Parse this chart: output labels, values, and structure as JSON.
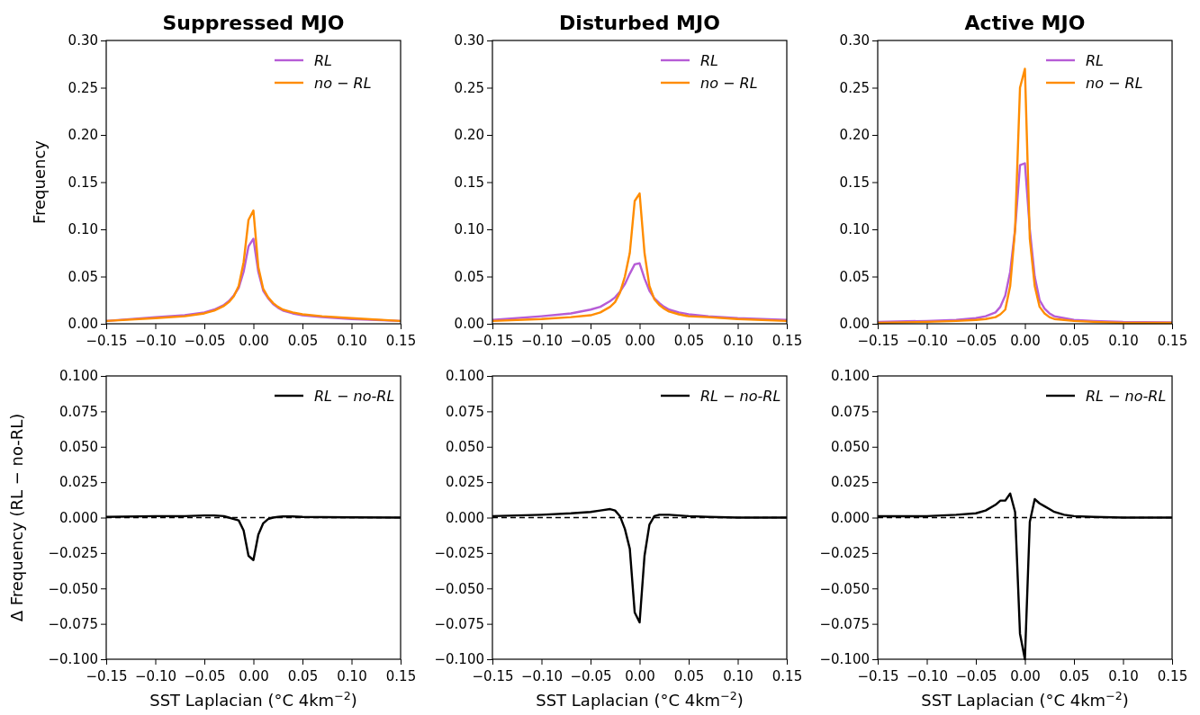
{
  "chart_data": [
    {
      "type": "line",
      "title": "Suppressed MJO",
      "ylabel": "Frequency",
      "legend": "top right",
      "xlim": [
        -0.15,
        0.15
      ],
      "ylim": [
        0,
        0.3
      ],
      "xticks": [
        {
          "value": -0.15,
          "label": "−0.15"
        },
        {
          "value": -0.1,
          "label": "−0.10"
        },
        {
          "value": -0.05,
          "label": "−0.05"
        },
        {
          "value": 0,
          "label": "0.00"
        },
        {
          "value": 0.05,
          "label": "0.05"
        },
        {
          "value": 0.1,
          "label": "0.10"
        },
        {
          "value": 0.15,
          "label": "0.15"
        }
      ],
      "yticks": [
        {
          "value": 0,
          "label": "0.00"
        },
        {
          "value": 0.05,
          "label": "0.05"
        },
        {
          "value": 0.1,
          "label": "0.10"
        },
        {
          "value": 0.15,
          "label": "0.15"
        },
        {
          "value": 0.2,
          "label": "0.20"
        },
        {
          "value": 0.25,
          "label": "0.25"
        },
        {
          "value": 0.3,
          "label": "0.30"
        }
      ],
      "x": [
        -0.15,
        -0.1,
        -0.07,
        -0.05,
        -0.04,
        -0.03,
        -0.025,
        -0.02,
        -0.015,
        -0.01,
        -0.005,
        0,
        0.005,
        0.01,
        0.015,
        0.02,
        0.025,
        0.03,
        0.04,
        0.05,
        0.07,
        0.1,
        0.15
      ],
      "series": [
        {
          "name": "RL",
          "color": "#b65cd6",
          "values": [
            0.003,
            0.007,
            0.009,
            0.012,
            0.015,
            0.02,
            0.024,
            0.03,
            0.038,
            0.055,
            0.082,
            0.09,
            0.055,
            0.035,
            0.027,
            0.021,
            0.017,
            0.014,
            0.011,
            0.009,
            0.007,
            0.005,
            0.003
          ]
        },
        {
          "name": "no − RL",
          "color": "#ff8c00",
          "values": [
            0.003,
            0.006,
            0.008,
            0.011,
            0.014,
            0.019,
            0.023,
            0.029,
            0.04,
            0.065,
            0.11,
            0.12,
            0.06,
            0.037,
            0.028,
            0.022,
            0.018,
            0.015,
            0.012,
            0.01,
            0.008,
            0.006,
            0.003
          ]
        }
      ]
    },
    {
      "type": "line",
      "title": "Disturbed MJO",
      "legend": "top right",
      "xlim": [
        -0.15,
        0.15
      ],
      "ylim": [
        0,
        0.3
      ],
      "xticks": [
        {
          "value": -0.15,
          "label": "−0.15"
        },
        {
          "value": -0.1,
          "label": "−0.10"
        },
        {
          "value": -0.05,
          "label": "−0.05"
        },
        {
          "value": 0,
          "label": "0.00"
        },
        {
          "value": 0.05,
          "label": "0.05"
        },
        {
          "value": 0.1,
          "label": "0.10"
        },
        {
          "value": 0.15,
          "label": "0.15"
        }
      ],
      "yticks": [
        {
          "value": 0,
          "label": "0.00"
        },
        {
          "value": 0.05,
          "label": "0.05"
        },
        {
          "value": 0.1,
          "label": "0.10"
        },
        {
          "value": 0.15,
          "label": "0.15"
        },
        {
          "value": 0.2,
          "label": "0.20"
        },
        {
          "value": 0.25,
          "label": "0.25"
        },
        {
          "value": 0.3,
          "label": "0.30"
        }
      ],
      "x": [
        -0.15,
        -0.1,
        -0.07,
        -0.05,
        -0.04,
        -0.03,
        -0.025,
        -0.02,
        -0.015,
        -0.01,
        -0.005,
        0,
        0.005,
        0.01,
        0.015,
        0.02,
        0.025,
        0.03,
        0.04,
        0.05,
        0.07,
        0.1,
        0.15
      ],
      "series": [
        {
          "name": "RL",
          "color": "#b65cd6",
          "values": [
            0.004,
            0.008,
            0.011,
            0.015,
            0.018,
            0.024,
            0.028,
            0.034,
            0.042,
            0.053,
            0.063,
            0.064,
            0.048,
            0.035,
            0.027,
            0.022,
            0.018,
            0.015,
            0.012,
            0.01,
            0.008,
            0.006,
            0.004
          ]
        },
        {
          "name": "no − RL",
          "color": "#ff8c00",
          "values": [
            0.003,
            0.005,
            0.007,
            0.009,
            0.012,
            0.018,
            0.023,
            0.033,
            0.05,
            0.075,
            0.13,
            0.138,
            0.075,
            0.04,
            0.026,
            0.02,
            0.016,
            0.013,
            0.01,
            0.008,
            0.007,
            0.005,
            0.003
          ]
        }
      ]
    },
    {
      "type": "line",
      "title": "Active MJO",
      "legend": "top right",
      "xlim": [
        -0.15,
        0.15
      ],
      "ylim": [
        0,
        0.3
      ],
      "xticks": [
        {
          "value": -0.15,
          "label": "−0.15"
        },
        {
          "value": -0.1,
          "label": "−0.10"
        },
        {
          "value": -0.05,
          "label": "−0.05"
        },
        {
          "value": 0,
          "label": "0.00"
        },
        {
          "value": 0.05,
          "label": "0.05"
        },
        {
          "value": 0.1,
          "label": "0.10"
        },
        {
          "value": 0.15,
          "label": "0.15"
        }
      ],
      "yticks": [
        {
          "value": 0,
          "label": "0.00"
        },
        {
          "value": 0.05,
          "label": "0.05"
        },
        {
          "value": 0.1,
          "label": "0.10"
        },
        {
          "value": 0.15,
          "label": "0.15"
        },
        {
          "value": 0.2,
          "label": "0.20"
        },
        {
          "value": 0.25,
          "label": "0.25"
        },
        {
          "value": 0.3,
          "label": "0.30"
        }
      ],
      "x": [
        -0.15,
        -0.1,
        -0.07,
        -0.05,
        -0.04,
        -0.03,
        -0.025,
        -0.02,
        -0.015,
        -0.01,
        -0.005,
        0,
        0.005,
        0.01,
        0.015,
        0.02,
        0.025,
        0.03,
        0.04,
        0.05,
        0.07,
        0.1,
        0.15
      ],
      "series": [
        {
          "name": "RL",
          "color": "#b65cd6",
          "values": [
            0.002,
            0.003,
            0.004,
            0.006,
            0.008,
            0.012,
            0.018,
            0.03,
            0.055,
            0.1,
            0.168,
            0.17,
            0.1,
            0.05,
            0.025,
            0.016,
            0.011,
            0.008,
            0.006,
            0.004,
            0.003,
            0.002,
            0.0015
          ]
        },
        {
          "name": "no − RL",
          "color": "#ff8c00",
          "values": [
            0.001,
            0.002,
            0.003,
            0.004,
            0.005,
            0.007,
            0.01,
            0.015,
            0.04,
            0.1,
            0.25,
            0.27,
            0.09,
            0.04,
            0.018,
            0.011,
            0.007,
            0.005,
            0.004,
            0.003,
            0.002,
            0.001,
            0.001
          ]
        }
      ]
    },
    {
      "type": "line",
      "xlabel": "SST Laplacian (°C 4km$^{−2}$)",
      "ylabel": "Δ Frequency (RL − no-RL)",
      "legend": "top right",
      "xlim": [
        -0.15,
        0.15
      ],
      "ylim": [
        -0.1,
        0.1
      ],
      "xticks": [
        {
          "value": -0.15,
          "label": "−0.15"
        },
        {
          "value": -0.1,
          "label": "−0.10"
        },
        {
          "value": -0.05,
          "label": "−0.05"
        },
        {
          "value": 0,
          "label": "0.00"
        },
        {
          "value": 0.05,
          "label": "0.05"
        },
        {
          "value": 0.1,
          "label": "0.10"
        },
        {
          "value": 0.15,
          "label": "0.15"
        }
      ],
      "yticks": [
        {
          "value": -0.1,
          "label": "−0.100"
        },
        {
          "value": -0.075,
          "label": "−0.075"
        },
        {
          "value": -0.05,
          "label": "−0.050"
        },
        {
          "value": -0.025,
          "label": "−0.025"
        },
        {
          "value": 0,
          "label": "0.000"
        },
        {
          "value": 0.025,
          "label": "0.025"
        },
        {
          "value": 0.05,
          "label": "0.050"
        },
        {
          "value": 0.075,
          "label": "0.075"
        },
        {
          "value": 0.1,
          "label": "0.100"
        }
      ],
      "ref_lines": [
        {
          "axis": "y",
          "value": 0,
          "color": "#000000",
          "line_style": "dashed"
        }
      ],
      "x": [
        -0.15,
        -0.1,
        -0.07,
        -0.05,
        -0.04,
        -0.03,
        -0.025,
        -0.02,
        -0.015,
        -0.01,
        -0.005,
        0,
        0.005,
        0.01,
        0.015,
        0.02,
        0.025,
        0.03,
        0.04,
        0.05,
        0.07,
        0.1,
        0.15
      ],
      "series": [
        {
          "name": "RL − no-RL",
          "color": "#000000",
          "values": [
            0.0005,
            0.001,
            0.001,
            0.0015,
            0.0015,
            0.001,
            0,
            -0.001,
            -0.002,
            -0.009,
            -0.027,
            -0.03,
            -0.012,
            -0.004,
            -0.001,
            0,
            0.0005,
            0.0008,
            0.0008,
            0.0005,
            0.0003,
            0.0002,
            0
          ]
        }
      ]
    },
    {
      "type": "line",
      "xlabel": "SST Laplacian (°C 4km$^{−2}$)",
      "legend": "top right",
      "xlim": [
        -0.15,
        0.15
      ],
      "ylim": [
        -0.1,
        0.1
      ],
      "xticks": [
        {
          "value": -0.15,
          "label": "−0.15"
        },
        {
          "value": -0.1,
          "label": "−0.10"
        },
        {
          "value": -0.05,
          "label": "−0.05"
        },
        {
          "value": 0,
          "label": "0.00"
        },
        {
          "value": 0.05,
          "label": "0.05"
        },
        {
          "value": 0.1,
          "label": "0.10"
        },
        {
          "value": 0.15,
          "label": "0.15"
        }
      ],
      "yticks": [
        {
          "value": -0.1,
          "label": "−0.100"
        },
        {
          "value": -0.075,
          "label": "−0.075"
        },
        {
          "value": -0.05,
          "label": "−0.050"
        },
        {
          "value": -0.025,
          "label": "−0.025"
        },
        {
          "value": 0,
          "label": "0.000"
        },
        {
          "value": 0.025,
          "label": "0.025"
        },
        {
          "value": 0.05,
          "label": "0.050"
        },
        {
          "value": 0.075,
          "label": "0.075"
        },
        {
          "value": 0.1,
          "label": "0.100"
        }
      ],
      "ref_lines": [
        {
          "axis": "y",
          "value": 0,
          "color": "#000000",
          "line_style": "dashed"
        }
      ],
      "x": [
        -0.15,
        -0.1,
        -0.07,
        -0.05,
        -0.04,
        -0.03,
        -0.025,
        -0.02,
        -0.015,
        -0.01,
        -0.005,
        0,
        0.005,
        0.01,
        0.015,
        0.02,
        0.025,
        0.03,
        0.04,
        0.05,
        0.07,
        0.1,
        0.15
      ],
      "series": [
        {
          "name": "RL − no-RL",
          "color": "#000000",
          "values": [
            0.001,
            0.002,
            0.003,
            0.004,
            0.005,
            0.006,
            0.005,
            0.001,
            -0.008,
            -0.022,
            -0.067,
            -0.074,
            -0.027,
            -0.005,
            0.001,
            0.002,
            0.002,
            0.002,
            0.0015,
            0.001,
            0.0005,
            0,
            0
          ]
        }
      ]
    },
    {
      "type": "line",
      "xlabel": "SST Laplacian (°C 4km$^{−2}$)",
      "legend": "top right",
      "xlim": [
        -0.15,
        0.15
      ],
      "ylim": [
        -0.1,
        0.1
      ],
      "xticks": [
        {
          "value": -0.15,
          "label": "−0.15"
        },
        {
          "value": -0.1,
          "label": "−0.10"
        },
        {
          "value": -0.05,
          "label": "−0.05"
        },
        {
          "value": 0,
          "label": "0.00"
        },
        {
          "value": 0.05,
          "label": "0.05"
        },
        {
          "value": 0.1,
          "label": "0.10"
        },
        {
          "value": 0.15,
          "label": "0.15"
        }
      ],
      "yticks": [
        {
          "value": -0.1,
          "label": "−0.100"
        },
        {
          "value": -0.075,
          "label": "−0.075"
        },
        {
          "value": -0.05,
          "label": "−0.050"
        },
        {
          "value": -0.025,
          "label": "−0.025"
        },
        {
          "value": 0,
          "label": "0.000"
        },
        {
          "value": 0.025,
          "label": "0.025"
        },
        {
          "value": 0.05,
          "label": "0.050"
        },
        {
          "value": 0.075,
          "label": "0.075"
        },
        {
          "value": 0.1,
          "label": "0.100"
        }
      ],
      "ref_lines": [
        {
          "axis": "y",
          "value": 0,
          "color": "#000000",
          "line_style": "dashed"
        }
      ],
      "x": [
        -0.15,
        -0.1,
        -0.07,
        -0.05,
        -0.04,
        -0.03,
        -0.025,
        -0.02,
        -0.015,
        -0.01,
        -0.005,
        0,
        0.005,
        0.01,
        0.015,
        0.02,
        0.025,
        0.03,
        0.04,
        0.05,
        0.07,
        0.1,
        0.15
      ],
      "series": [
        {
          "name": "RL − no-RL",
          "color": "#000000",
          "values": [
            0.001,
            0.001,
            0.002,
            0.003,
            0.005,
            0.009,
            0.012,
            0.012,
            0.017,
            0.004,
            -0.082,
            -0.1,
            -0.003,
            0.013,
            0.01,
            0.008,
            0.006,
            0.004,
            0.002,
            0.001,
            0.0005,
            0,
            0
          ]
        }
      ]
    }
  ]
}
